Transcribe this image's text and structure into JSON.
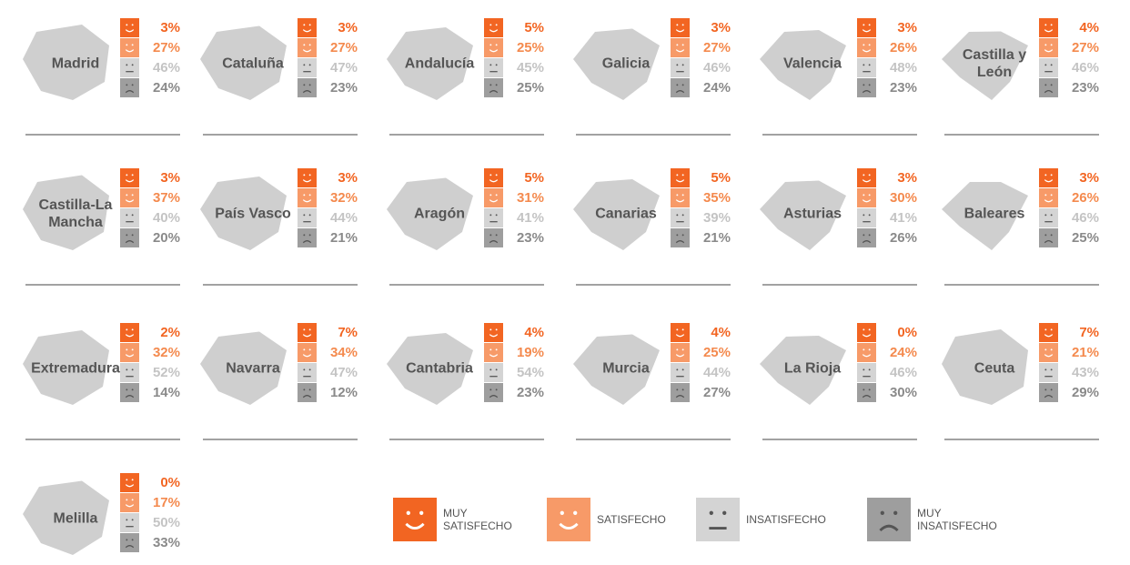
{
  "chart_data": {
    "type": "small-multiples",
    "series": [
      {
        "name": "MUY SATISFECHO",
        "color": "#f26522",
        "text_color": "#f26522"
      },
      {
        "name": "SATISFECHO",
        "color": "#f79a68",
        "text_color": "#f48a4e"
      },
      {
        "name": "INSATISFECHO",
        "color": "#d4d4d4",
        "text_color": "#c4c4c4"
      },
      {
        "name": "MUY INSATISFECHO",
        "color": "#9e9e9e",
        "text_color": "#8a8a8a"
      }
    ],
    "regions": [
      {
        "name": "Madrid",
        "values": [
          3,
          27,
          46,
          24
        ],
        "value_labels": [
          "3%",
          "27%",
          "46%",
          "24%"
        ]
      },
      {
        "name": "Cataluña",
        "values": [
          3,
          27,
          47,
          23
        ],
        "value_labels": [
          "3%",
          "27%",
          "47%",
          "23%"
        ]
      },
      {
        "name": "Andalucía",
        "values": [
          5,
          25,
          45,
          25
        ],
        "value_labels": [
          "5%",
          "25%",
          "45%",
          "25%"
        ]
      },
      {
        "name": "Galicia",
        "values": [
          3,
          27,
          46,
          24
        ],
        "value_labels": [
          "3%",
          "27%",
          "46%",
          "24%"
        ]
      },
      {
        "name": "Valencia",
        "values": [
          3,
          26,
          48,
          23
        ],
        "value_labels": [
          "3%",
          "26%",
          "48%",
          "23%"
        ]
      },
      {
        "name": "Castilla y León",
        "values": [
          4,
          27,
          46,
          23
        ],
        "value_labels": [
          "4%",
          "27%",
          "46%",
          "23%"
        ]
      },
      {
        "name": "Castilla-La Mancha",
        "values": [
          3,
          37,
          40,
          20
        ],
        "value_labels": [
          "3%",
          "37%",
          "40%",
          "20%"
        ]
      },
      {
        "name": "País Vasco",
        "values": [
          3,
          32,
          44,
          21
        ],
        "value_labels": [
          "3%",
          "32%",
          "44%",
          "21%"
        ]
      },
      {
        "name": "Aragón",
        "values": [
          5,
          31,
          41,
          23
        ],
        "value_labels": [
          "5%",
          "31%",
          "41%",
          "23%"
        ]
      },
      {
        "name": "Canarias",
        "values": [
          5,
          35,
          39,
          21
        ],
        "value_labels": [
          "5%",
          "35%",
          "39%",
          "21%"
        ]
      },
      {
        "name": "Asturias",
        "values": [
          3,
          30,
          41,
          26
        ],
        "value_labels": [
          "3%",
          "30%",
          "41%",
          "26%"
        ]
      },
      {
        "name": "Baleares",
        "values": [
          3,
          26,
          46,
          25
        ],
        "value_labels": [
          "3%",
          "26%",
          "46%",
          "25%"
        ]
      },
      {
        "name": "Extremadura",
        "values": [
          2,
          32,
          52,
          14
        ],
        "value_labels": [
          "2%",
          "32%",
          "52%",
          "14%"
        ]
      },
      {
        "name": "Navarra",
        "values": [
          7,
          34,
          47,
          12
        ],
        "value_labels": [
          "7%",
          "34%",
          "47%",
          "12%"
        ]
      },
      {
        "name": "Cantabria",
        "values": [
          4,
          19,
          54,
          23
        ],
        "value_labels": [
          "4%",
          "19%",
          "54%",
          "23%"
        ]
      },
      {
        "name": "Murcia",
        "values": [
          4,
          25,
          44,
          27
        ],
        "value_labels": [
          "4%",
          "25%",
          "44%",
          "27%"
        ]
      },
      {
        "name": "La Rioja",
        "values": [
          0,
          24,
          46,
          30
        ],
        "value_labels": [
          "0%",
          "24%",
          "46%",
          "30%"
        ]
      },
      {
        "name": "Ceuta",
        "values": [
          7,
          21,
          43,
          29
        ],
        "value_labels": [
          "7%",
          "21%",
          "43%",
          "29%"
        ]
      },
      {
        "name": "Melilla",
        "values": [
          0,
          17,
          50,
          33
        ],
        "value_labels": [
          "0%",
          "17%",
          "50%",
          "33%"
        ]
      }
    ]
  }
}
